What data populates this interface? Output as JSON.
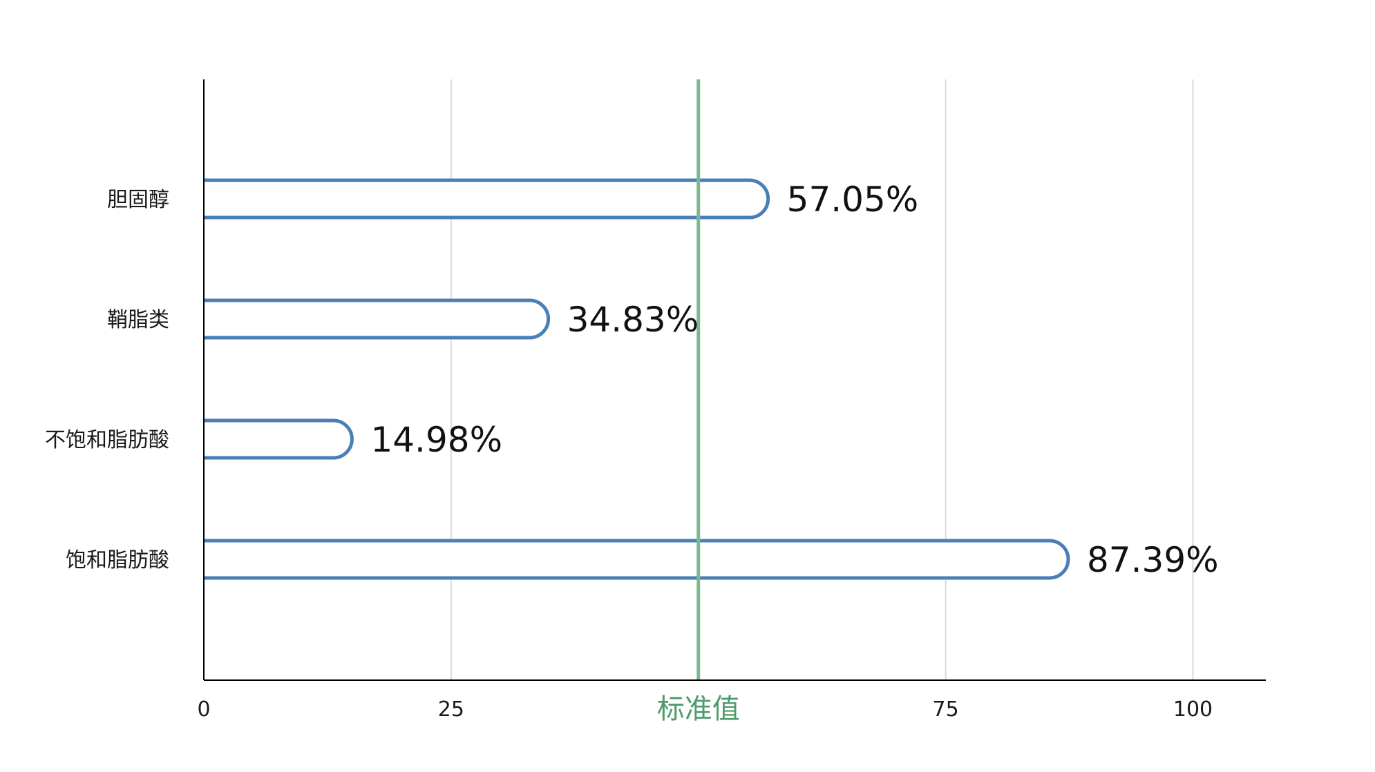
{
  "chart_data": {
    "type": "bar",
    "orientation": "horizontal",
    "categories": [
      "胆固醇",
      "鞘脂类",
      "不饱和脂肪酸",
      "饱和脂肪酸"
    ],
    "values": [
      57.05,
      34.83,
      14.98,
      87.39
    ],
    "value_labels": [
      "57.05%",
      "34.83%",
      "14.98%",
      "87.39%"
    ],
    "xlim": [
      0,
      107
    ],
    "ticks": [
      {
        "value": 0,
        "label": "0"
      },
      {
        "value": 25,
        "label": "25"
      },
      {
        "value": 50,
        "label": "标准值"
      },
      {
        "value": 75,
        "label": "75"
      },
      {
        "value": 100,
        "label": "100"
      }
    ],
    "reference_line": {
      "value": 50,
      "label": "标准值"
    },
    "grid": true,
    "legend": false,
    "colors": {
      "bar_stroke": "#4a7fb5",
      "bar_fill": "#ffffff",
      "reference_line": "#7cb88f",
      "reference_label": "#4e9a6b",
      "grid": "#d9d9d9",
      "axis": "#000000"
    }
  }
}
